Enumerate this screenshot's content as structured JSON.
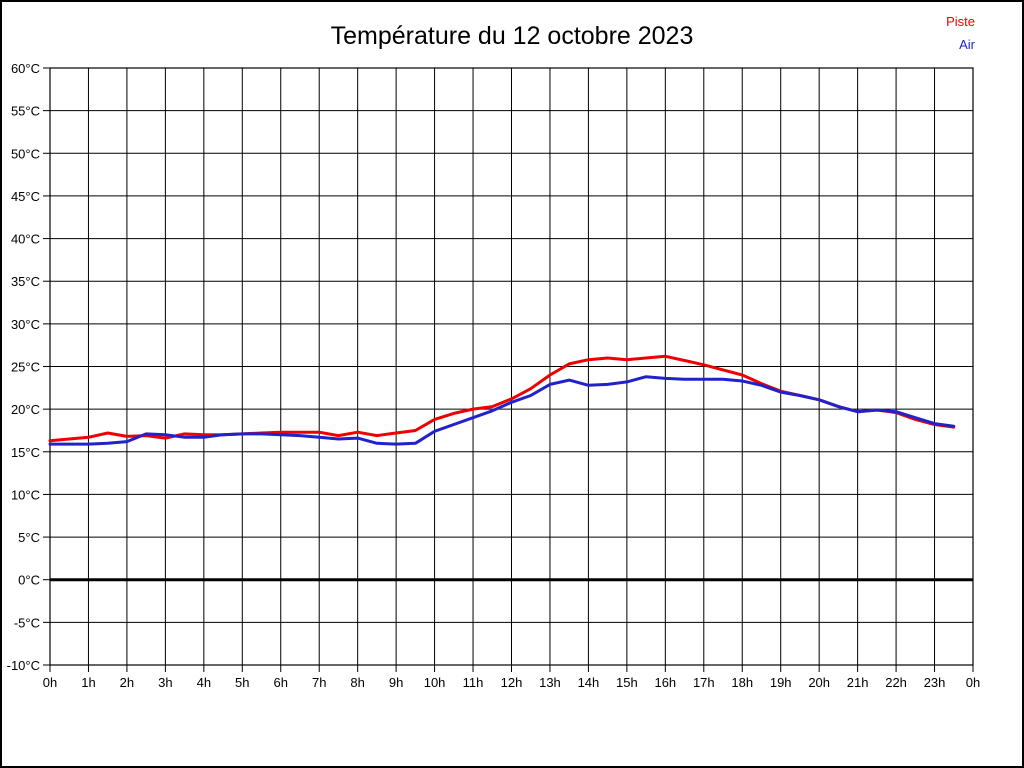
{
  "chart_data": {
    "type": "line",
    "title": "Température du 12 octobre 2023",
    "xlabel": "",
    "ylabel": "",
    "xlim": [
      0,
      24
    ],
    "ylim": [
      -10,
      60
    ],
    "y_tick_step": 5,
    "y_tick_suffix": "°C",
    "x_tick_hours": [
      0,
      1,
      2,
      3,
      4,
      5,
      6,
      7,
      8,
      9,
      10,
      11,
      12,
      13,
      14,
      15,
      16,
      17,
      18,
      19,
      20,
      21,
      22,
      23,
      24
    ],
    "x_tick_labels": [
      "0h",
      "1h",
      "2h",
      "3h",
      "4h",
      "5h",
      "6h",
      "7h",
      "8h",
      "9h",
      "10h",
      "11h",
      "12h",
      "13h",
      "14h",
      "15h",
      "16h",
      "17h",
      "18h",
      "19h",
      "20h",
      "21h",
      "22h",
      "23h",
      "0h"
    ],
    "grid": true,
    "zero_line_at": 0,
    "legend_position": "top-right",
    "x": [
      0,
      0.5,
      1,
      1.5,
      2,
      2.5,
      3,
      3.5,
      4,
      4.5,
      5,
      5.5,
      6,
      6.5,
      7,
      7.5,
      8,
      8.5,
      9,
      9.5,
      10,
      10.5,
      11,
      11.5,
      12,
      12.5,
      13,
      13.5,
      14,
      14.5,
      15,
      15.5,
      16,
      16.5,
      17,
      17.5,
      18,
      18.5,
      19,
      19.5,
      20,
      20.5,
      21,
      21.5,
      22,
      22.5,
      23,
      23.5
    ],
    "series": [
      {
        "name": "Piste",
        "color": "#ee0000",
        "values": [
          16.3,
          16.5,
          16.7,
          17.2,
          16.8,
          16.9,
          16.6,
          17.1,
          17.0,
          17.0,
          17.1,
          17.2,
          17.3,
          17.3,
          17.3,
          16.9,
          17.3,
          16.9,
          17.2,
          17.5,
          18.8,
          19.5,
          20.0,
          20.3,
          21.2,
          22.4,
          24.0,
          25.3,
          25.8,
          26.0,
          25.8,
          26.0,
          26.2,
          25.7,
          25.2,
          24.6,
          24.0,
          23.0,
          22.1,
          21.6,
          21.1,
          20.3,
          19.7,
          19.9,
          19.6,
          18.8,
          18.2,
          17.9
        ]
      },
      {
        "name": "Air",
        "color": "#2222cc",
        "values": [
          15.9,
          15.9,
          15.9,
          16.0,
          16.2,
          17.1,
          17.0,
          16.7,
          16.7,
          17.0,
          17.1,
          17.1,
          17.0,
          16.9,
          16.7,
          16.5,
          16.6,
          16.0,
          15.9,
          16.0,
          17.4,
          18.2,
          19.0,
          19.8,
          20.8,
          21.6,
          22.9,
          23.4,
          22.8,
          22.9,
          23.2,
          23.8,
          23.6,
          23.5,
          23.5,
          23.5,
          23.3,
          22.8,
          22.0,
          21.6,
          21.1,
          20.3,
          19.7,
          19.9,
          19.7,
          19.0,
          18.3,
          18.0
        ]
      }
    ]
  },
  "colors": {
    "grid": "#000000",
    "axis": "#000000",
    "background": "#ffffff",
    "title": "#000000"
  }
}
